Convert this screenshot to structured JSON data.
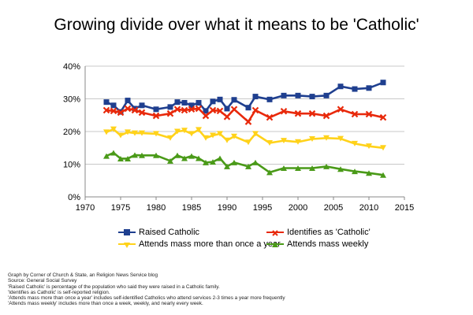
{
  "chart_data": {
    "type": "line",
    "title": "Growing divide over what it means to be 'Catholic'",
    "xlim": [
      1970,
      2015
    ],
    "ylim": [
      0,
      40
    ],
    "x_ticks": [
      1970,
      1975,
      1980,
      1985,
      1990,
      1995,
      2000,
      2005,
      2010,
      2015
    ],
    "y_ticks": [
      0,
      10,
      20,
      30,
      40
    ],
    "y_tick_suffix": "%",
    "grid": "horizontal",
    "legend_position": "bottom",
    "series": [
      {
        "name": "Raised Catholic",
        "color": "#1f3f8f",
        "marker": "square",
        "x": [
          1973,
          1974,
          1975,
          1976,
          1977,
          1978,
          1980,
          1982,
          1983,
          1984,
          1985,
          1986,
          1987,
          1988,
          1989,
          1990,
          1991,
          1993,
          1994,
          1996,
          1998,
          2000,
          2002,
          2004,
          2006,
          2008,
          2010,
          2012
        ],
        "y": [
          29.0,
          28.0,
          26.0,
          29.5,
          27.0,
          28.0,
          26.8,
          27.5,
          29.0,
          28.8,
          28.0,
          28.8,
          26.3,
          29.2,
          29.8,
          27.0,
          29.7,
          27.3,
          30.7,
          29.8,
          31.0,
          31.0,
          30.7,
          31.0,
          33.8,
          33.0,
          33.3,
          35.0
        ]
      },
      {
        "name": "Identifies as 'Catholic'",
        "color": "#e8290b",
        "marker": "x",
        "x": [
          1973,
          1974,
          1975,
          1976,
          1977,
          1978,
          1980,
          1982,
          1983,
          1984,
          1985,
          1986,
          1987,
          1988,
          1989,
          1990,
          1991,
          1993,
          1994,
          1996,
          1998,
          2000,
          2002,
          2004,
          2006,
          2008,
          2010,
          2012
        ],
        "y": [
          26.5,
          26.3,
          25.8,
          27.0,
          26.5,
          25.8,
          24.8,
          25.5,
          26.8,
          26.5,
          26.8,
          27.0,
          24.8,
          26.5,
          26.3,
          24.5,
          26.8,
          23.0,
          26.5,
          24.3,
          26.2,
          25.5,
          25.5,
          24.8,
          26.8,
          25.3,
          25.3,
          24.3
        ]
      },
      {
        "name": "Attends mass more than once a year",
        "color": "#ffd21a",
        "marker": "triangle-down",
        "x": [
          1973,
          1974,
          1975,
          1976,
          1977,
          1978,
          1980,
          1982,
          1983,
          1984,
          1985,
          1986,
          1987,
          1988,
          1989,
          1990,
          1991,
          1993,
          1994,
          1996,
          1998,
          2000,
          2002,
          2004,
          2006,
          2008,
          2010,
          2012
        ],
        "y": [
          19.8,
          20.7,
          18.8,
          19.8,
          19.5,
          19.5,
          19.3,
          18.0,
          20.0,
          20.3,
          19.3,
          20.5,
          18.0,
          18.8,
          19.3,
          17.3,
          18.5,
          16.7,
          19.3,
          16.5,
          17.2,
          16.8,
          17.7,
          18.0,
          17.8,
          16.3,
          15.5,
          15.0
        ]
      },
      {
        "name": "Attends mass weekly",
        "color": "#4a9a18",
        "marker": "triangle-up",
        "x": [
          1973,
          1974,
          1975,
          1976,
          1977,
          1978,
          1980,
          1982,
          1983,
          1984,
          1985,
          1986,
          1987,
          1988,
          1989,
          1990,
          1991,
          1993,
          1994,
          1996,
          1998,
          2000,
          2002,
          2004,
          2006,
          2008,
          2010,
          2012
        ],
        "y": [
          12.5,
          13.5,
          11.7,
          11.7,
          12.8,
          12.7,
          12.7,
          11.0,
          12.7,
          11.8,
          12.5,
          11.8,
          10.5,
          10.7,
          11.8,
          9.3,
          10.5,
          9.3,
          10.5,
          7.5,
          8.8,
          8.8,
          8.8,
          9.3,
          8.5,
          7.8,
          7.3,
          6.7
        ]
      }
    ]
  },
  "notes": [
    "Graph by Corner of Church & State, an Religion News Service blog",
    "Source: General Social Survey",
    "'Raised Catholic' is percentage of the population who said they were raised in a Catholic family.",
    "'Identifies as Catholic' is self-reported religion.",
    "'Attends mass more than once a year' includes self-identified Catholics who attend services 2-3 times a year more frequently",
    "'Attends mass weekly' includes more than once a week, weekly, and nearly every week."
  ]
}
